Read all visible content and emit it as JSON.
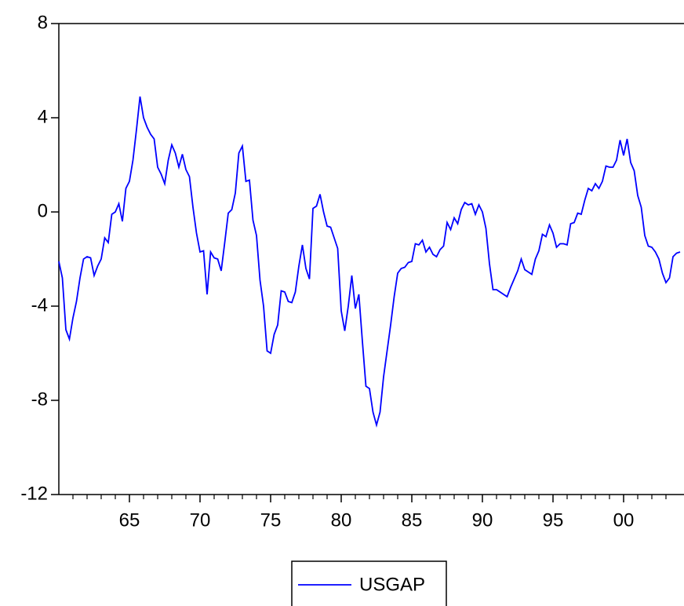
{
  "chart_data": {
    "type": "line",
    "x": [
      1960,
      1960.25,
      1960.5,
      1960.75,
      1961,
      1961.25,
      1961.5,
      1961.75,
      1962,
      1962.25,
      1962.5,
      1962.75,
      1963,
      1963.25,
      1963.5,
      1963.75,
      1964,
      1964.25,
      1964.5,
      1964.75,
      1965,
      1965.25,
      1965.5,
      1965.75,
      1966,
      1966.25,
      1966.5,
      1966.75,
      1967,
      1967.25,
      1967.5,
      1967.75,
      1968,
      1968.25,
      1968.5,
      1968.75,
      1969,
      1969.25,
      1969.5,
      1969.75,
      1970,
      1970.25,
      1970.5,
      1970.75,
      1971,
      1971.25,
      1971.5,
      1971.75,
      1972,
      1972.25,
      1972.5,
      1972.75,
      1973,
      1973.25,
      1973.5,
      1973.75,
      1974,
      1974.25,
      1974.5,
      1974.75,
      1975,
      1975.25,
      1975.5,
      1975.75,
      1976,
      1976.25,
      1976.5,
      1976.75,
      1977,
      1977.25,
      1977.5,
      1977.75,
      1978,
      1978.25,
      1978.5,
      1978.75,
      1979,
      1979.25,
      1979.5,
      1979.75,
      1980,
      1980.25,
      1980.5,
      1980.75,
      1981,
      1981.25,
      1981.5,
      1981.75,
      1982,
      1982.25,
      1982.5,
      1982.75,
      1983,
      1983.25,
      1983.5,
      1983.75,
      1984,
      1984.25,
      1984.5,
      1984.75,
      1985,
      1985.25,
      1985.5,
      1985.75,
      1986,
      1986.25,
      1986.5,
      1986.75,
      1987,
      1987.25,
      1987.5,
      1987.75,
      1988,
      1988.25,
      1988.5,
      1988.75,
      1989,
      1989.25,
      1989.5,
      1989.75,
      1990,
      1990.25,
      1990.5,
      1990.75,
      1991,
      1991.25,
      1991.5,
      1991.75,
      1992,
      1992.25,
      1992.5,
      1992.75,
      1993,
      1993.25,
      1993.5,
      1993.75,
      1994,
      1994.25,
      1994.5,
      1994.75,
      1995,
      1995.25,
      1995.5,
      1995.75,
      1996,
      1996.25,
      1996.5,
      1996.75,
      1997,
      1997.25,
      1997.5,
      1997.75,
      1998,
      1998.25,
      1998.5,
      1998.75,
      1999,
      1999.25,
      1999.5,
      1999.75,
      2000,
      2000.25,
      2000.5,
      2000.75,
      2001,
      2001.25,
      2001.5,
      2001.75,
      2002,
      2002.25,
      2002.5,
      2002.75,
      2003,
      2003.25,
      2003.5,
      2003.75,
      2004
    ],
    "series": [
      {
        "name": "USGAP",
        "color": "#0000ff",
        "values": [
          -2.1,
          -2.8,
          -5.0,
          -5.4,
          -4.5,
          -3.8,
          -2.8,
          -2.0,
          -1.9,
          -1.95,
          -2.7,
          -2.3,
          -2.0,
          -1.1,
          -1.3,
          -0.1,
          0.0,
          0.35,
          -0.4,
          1.0,
          1.3,
          2.2,
          3.5,
          4.9,
          4.0,
          3.6,
          3.3,
          3.1,
          1.9,
          1.6,
          1.2,
          2.2,
          2.85,
          2.5,
          1.9,
          2.45,
          1.8,
          1.5,
          0.2,
          -0.9,
          -1.7,
          -1.65,
          -3.5,
          -1.7,
          -1.95,
          -2.0,
          -2.5,
          -1.3,
          -0.05,
          0.1,
          0.8,
          2.5,
          2.8,
          1.3,
          1.35,
          -0.35,
          -1.0,
          -2.9,
          -4.0,
          -5.9,
          -6.0,
          -5.2,
          -4.8,
          -3.35,
          -3.4,
          -3.8,
          -3.85,
          -3.4,
          -2.3,
          -1.4,
          -2.4,
          -2.85,
          0.15,
          0.25,
          0.75,
          0.0,
          -0.6,
          -0.65,
          -1.1,
          -1.55,
          -4.2,
          -5.05,
          -4.0,
          -2.7,
          -4.1,
          -3.5,
          -5.5,
          -7.4,
          -7.5,
          -8.5,
          -9.05,
          -8.5,
          -7.0,
          -5.9,
          -4.8,
          -3.6,
          -2.6,
          -2.4,
          -2.35,
          -2.15,
          -2.1,
          -1.35,
          -1.4,
          -1.2,
          -1.7,
          -1.5,
          -1.8,
          -1.9,
          -1.6,
          -1.45,
          -0.45,
          -0.75,
          -0.25,
          -0.5,
          0.1,
          0.4,
          0.3,
          0.35,
          -0.1,
          0.3,
          0.0,
          -0.7,
          -2.2,
          -3.3,
          -3.3,
          -3.4,
          -3.5,
          -3.6,
          -3.2,
          -2.85,
          -2.5,
          -2.0,
          -2.45,
          -2.55,
          -2.65,
          -2.0,
          -1.65,
          -0.95,
          -1.05,
          -0.55,
          -0.9,
          -1.5,
          -1.35,
          -1.35,
          -1.4,
          -0.5,
          -0.45,
          -0.05,
          -0.1,
          0.5,
          1.0,
          0.9,
          1.2,
          1.0,
          1.3,
          1.95,
          1.9,
          1.9,
          2.2,
          3.05,
          2.4,
          3.1,
          2.1,
          1.75,
          0.7,
          0.2,
          -1.0,
          -1.45,
          -1.5,
          -1.7,
          -2.0,
          -2.6,
          -3.0,
          -2.8,
          -1.9,
          -1.75,
          -1.7
        ]
      }
    ],
    "xlim": [
      1960,
      2004.3
    ],
    "xticks": [
      {
        "value": 1965,
        "label": "65"
      },
      {
        "value": 1970,
        "label": "70"
      },
      {
        "value": 1975,
        "label": "75"
      },
      {
        "value": 1980,
        "label": "80"
      },
      {
        "value": 1985,
        "label": "85"
      },
      {
        "value": 1990,
        "label": "90"
      },
      {
        "value": 1995,
        "label": "95"
      },
      {
        "value": 2000,
        "label": "00"
      }
    ],
    "xminorticks": [
      1961,
      1962,
      1963,
      1964,
      1966,
      1967,
      1968,
      1969,
      1971,
      1972,
      1973,
      1974,
      1976,
      1977,
      1978,
      1979,
      1981,
      1982,
      1983,
      1984,
      1986,
      1987,
      1988,
      1989,
      1991,
      1992,
      1993,
      1994,
      1996,
      1997,
      1998,
      1999,
      2001,
      2002,
      2003
    ],
    "ylim": [
      -12,
      8
    ],
    "yticks": [
      -12,
      -8,
      -4,
      0,
      4,
      8
    ],
    "legend": "bottom"
  }
}
